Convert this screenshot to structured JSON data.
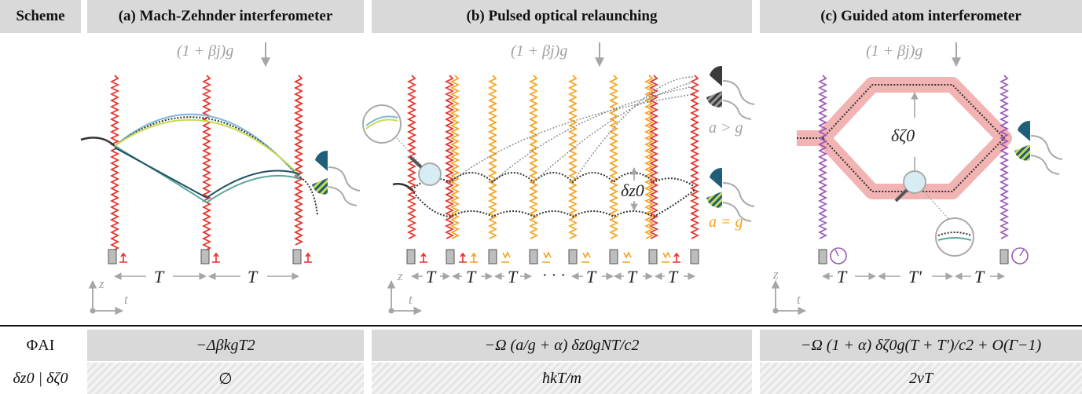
{
  "header": {
    "scheme": "Scheme",
    "panel_a": "(a) Mach-Zehnder interferometer",
    "panel_b": "(b) Pulsed optical relaunching",
    "panel_c": "(c) Guided atom interferometer"
  },
  "gravity_label": "(1 + βj)g",
  "panel_a": {
    "period": "T"
  },
  "panel_b": {
    "period": "T",
    "dots": "· · ·",
    "delta_z0": "δz0",
    "a_gt_g": "a > g",
    "a_eq_g": "a = g"
  },
  "panel_c": {
    "period_t": "T",
    "period_tprime": "T′",
    "delta_zeta0": "δζ0"
  },
  "axes": {
    "z": "z",
    "t": "t"
  },
  "rows": {
    "phase_label": "ΦAI",
    "phase_a": "−ΔβkgT2",
    "phase_b": "−Ω (a/g + α) δz0gNT/c2",
    "phase_c": "−Ω (1 + α) δζ0g(T + T′)/c2 + O(Γ−1)",
    "sep_label": "δz0 | δζ0",
    "sep_a": "∅",
    "sep_b": "ħkT/m",
    "sep_c": "2vT"
  },
  "colors": {
    "laser_red": "#e8312a",
    "laser_orange": "#f5a21c",
    "laser_purple": "#9b59b6",
    "arm_blue": "#7fb8d8",
    "arm_yellow": "#c8dc52",
    "arm_teal": "#5aa79a",
    "guide_pink": "#f2b3b3",
    "label_gray": "#a0a0a0"
  }
}
